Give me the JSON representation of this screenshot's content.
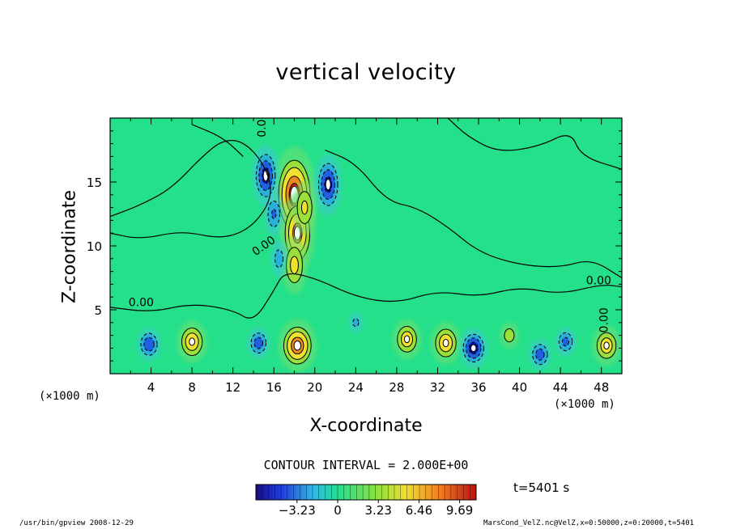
{
  "chart_data": {
    "type": "heatmap",
    "title": "vertical velocity",
    "xlabel": "X-coordinate",
    "ylabel": "Z-coordinate",
    "x_unit": "(×1000 m)",
    "y_unit": "(×1000 m)",
    "xlim": [
      0,
      50
    ],
    "ylim": [
      0,
      20
    ],
    "x_ticks": [
      "4",
      "8",
      "12",
      "16",
      "20",
      "24",
      "28",
      "32",
      "36",
      "40",
      "44",
      "48"
    ],
    "y_ticks": [
      "5",
      "10",
      "15"
    ],
    "contour_interval_label": "CONTOUR INTERVAL = 2.000E+00",
    "contour_labels": [
      "0.00"
    ],
    "colorbar_ticks": [
      "−3.23",
      "0",
      "3.23",
      "6.46",
      "9.69"
    ],
    "colorbar_range": [
      -6.5,
      11
    ],
    "time_label": "t=5401 s",
    "colors": {
      "neutral": "#25e08a",
      "positive": [
        "#9be03a",
        "#f0e030",
        "#f08a20",
        "#d02010"
      ],
      "negative": [
        "#2ab0d8",
        "#2060e0",
        "#1010a0"
      ]
    },
    "cells": [
      {
        "x": 18.3,
        "z": 2.2,
        "value": 9.0
      },
      {
        "x": 8.0,
        "z": 2.5,
        "value": 6.5
      },
      {
        "x": 29.0,
        "z": 2.7,
        "value": 6.0
      },
      {
        "x": 32.8,
        "z": 2.4,
        "value": 6.5
      },
      {
        "x": 48.5,
        "z": 2.2,
        "value": 6.0
      },
      {
        "x": 3.8,
        "z": 2.3,
        "value": -4.5
      },
      {
        "x": 14.5,
        "z": 2.4,
        "value": -4.0
      },
      {
        "x": 35.5,
        "z": 2.0,
        "value": -6.0
      },
      {
        "x": 42.0,
        "z": 1.5,
        "value": -4.0
      },
      {
        "x": 44.5,
        "z": 2.5,
        "value": -3.5
      },
      {
        "x": 18.0,
        "z": 14.0,
        "value": 10.5
      },
      {
        "x": 18.3,
        "z": 11.0,
        "value": 8.0
      },
      {
        "x": 18.0,
        "z": 8.5,
        "value": 5.0
      },
      {
        "x": 19.0,
        "z": 13.0,
        "value": 4.5
      },
      {
        "x": 15.2,
        "z": 15.5,
        "value": -5.5
      },
      {
        "x": 21.3,
        "z": 14.8,
        "value": -5.5
      },
      {
        "x": 16.0,
        "z": 12.5,
        "value": -3.0
      },
      {
        "x": 16.5,
        "z": 9.0,
        "value": -2.0
      },
      {
        "x": 24.0,
        "z": 4.0,
        "value": -1.5
      },
      {
        "x": 39.0,
        "z": 3.0,
        "value": 3.0
      }
    ]
  },
  "footer": {
    "left": "/usr/bin/gpview   2008-12-29",
    "right": "MarsCond_VelZ.nc@VelZ,x=0:50000,z=0:20000,t=5401"
  }
}
